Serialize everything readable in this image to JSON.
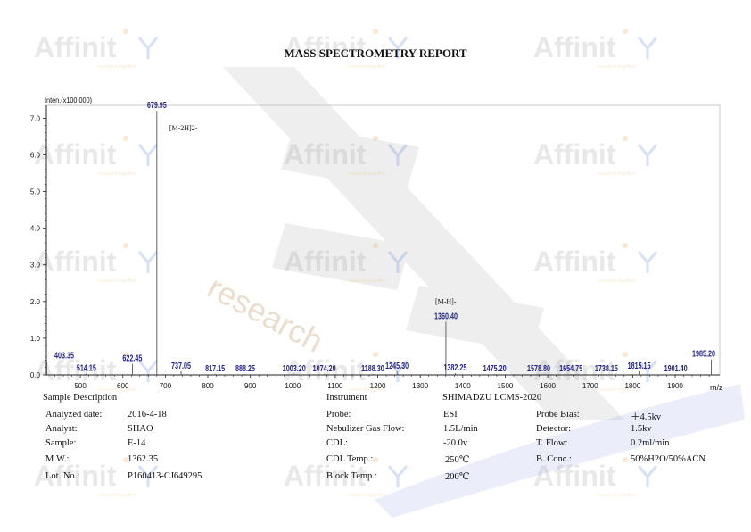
{
  "report": {
    "title": "MASS SPECTROMETRY REPORT"
  },
  "watermark": {
    "brand": "Affinit",
    "tagline": "research together",
    "diagonal_text": "research"
  },
  "chart_data": {
    "type": "bar",
    "ylabel": "Inten.(x100,000)",
    "xlabel": "m/z",
    "xlim": [
      420,
      2005
    ],
    "ylim": [
      0,
      7.35
    ],
    "x_ticks": [
      500,
      600,
      700,
      800,
      900,
      1000,
      1100,
      1200,
      1300,
      1400,
      1500,
      1600,
      1700,
      1800,
      1900
    ],
    "y_ticks": [
      "0.0",
      "1.0",
      "2.0",
      "3.0",
      "4.0",
      "5.0",
      "6.0",
      "7.0"
    ],
    "peaks": [
      {
        "x": 403.35,
        "y": 0.38,
        "label": "403.35"
      },
      {
        "x": 514.15,
        "y": 0.04,
        "label": "514.15"
      },
      {
        "x": 622.45,
        "y": 0.3,
        "label": "622.45"
      },
      {
        "x": 679.95,
        "y": 7.2,
        "label": "679.95"
      },
      {
        "x": 737.05,
        "y": 0.1,
        "label": "737.05"
      },
      {
        "x": 817.15,
        "y": 0.03,
        "label": "817.15"
      },
      {
        "x": 888.25,
        "y": 0.03,
        "label": "888.25"
      },
      {
        "x": 1003.2,
        "y": 0.03,
        "label": "1003.20"
      },
      {
        "x": 1074.2,
        "y": 0.03,
        "label": "1074.20"
      },
      {
        "x": 1188.3,
        "y": 0.03,
        "label": "1188.30"
      },
      {
        "x": 1245.3,
        "y": 0.1,
        "label": "1245.30"
      },
      {
        "x": 1360.4,
        "y": 1.45,
        "label": "1360.40"
      },
      {
        "x": 1382.25,
        "y": 0.05,
        "label": "1382.25"
      },
      {
        "x": 1475.2,
        "y": 0.02,
        "label": "1475.20"
      },
      {
        "x": 1578.8,
        "y": 0.02,
        "label": "1578.80"
      },
      {
        "x": 1654.75,
        "y": 0.02,
        "label": "1654.75"
      },
      {
        "x": 1738.15,
        "y": 0.02,
        "label": "1738.15"
      },
      {
        "x": 1815.15,
        "y": 0.1,
        "label": "1815.15"
      },
      {
        "x": 1901.4,
        "y": 0.02,
        "label": "1901.40"
      },
      {
        "x": 1985.2,
        "y": 0.42,
        "label": "1985.20"
      }
    ],
    "annotations": [
      {
        "x": 679.95,
        "text": "[M-2H]2-"
      },
      {
        "x": 1360.4,
        "text": "[M-H]-"
      }
    ]
  },
  "sample": {
    "header": "Sample Description",
    "rows": [
      {
        "label": "Analyzed date:",
        "value": "2016-4-18"
      },
      {
        "label": "Analyst:",
        "value": "SHAO"
      },
      {
        "label": "Sample:",
        "value": "E-14"
      },
      {
        "label": "M.W.:",
        "value": "1362.35"
      },
      {
        "label": "Lot. No.:",
        "value": "P160413-CJ649295"
      }
    ]
  },
  "instrument": {
    "header": "Instrument",
    "model": "SHIMADZU LCMS-2020",
    "rows": [
      {
        "label": "Probe:",
        "value": "ESI"
      },
      {
        "label": "Nebulizer Gas Flow:",
        "value": "1.5L/min"
      },
      {
        "label": "CDL:",
        "value": "-20.0v"
      },
      {
        "label": "CDL Temp.:",
        "value": "250℃"
      },
      {
        "label": "Block Temp.:",
        "value": "200℃"
      }
    ],
    "rows2": [
      {
        "label": "Probe Bias:",
        "value": "＋4.5kv"
      },
      {
        "label": "Detector:",
        "value": "1.5kv"
      },
      {
        "label": "T. Flow:",
        "value": "0.2ml/min"
      },
      {
        "label": "B. Conc.:",
        "value": "50%H2O/50%ACN"
      }
    ]
  }
}
